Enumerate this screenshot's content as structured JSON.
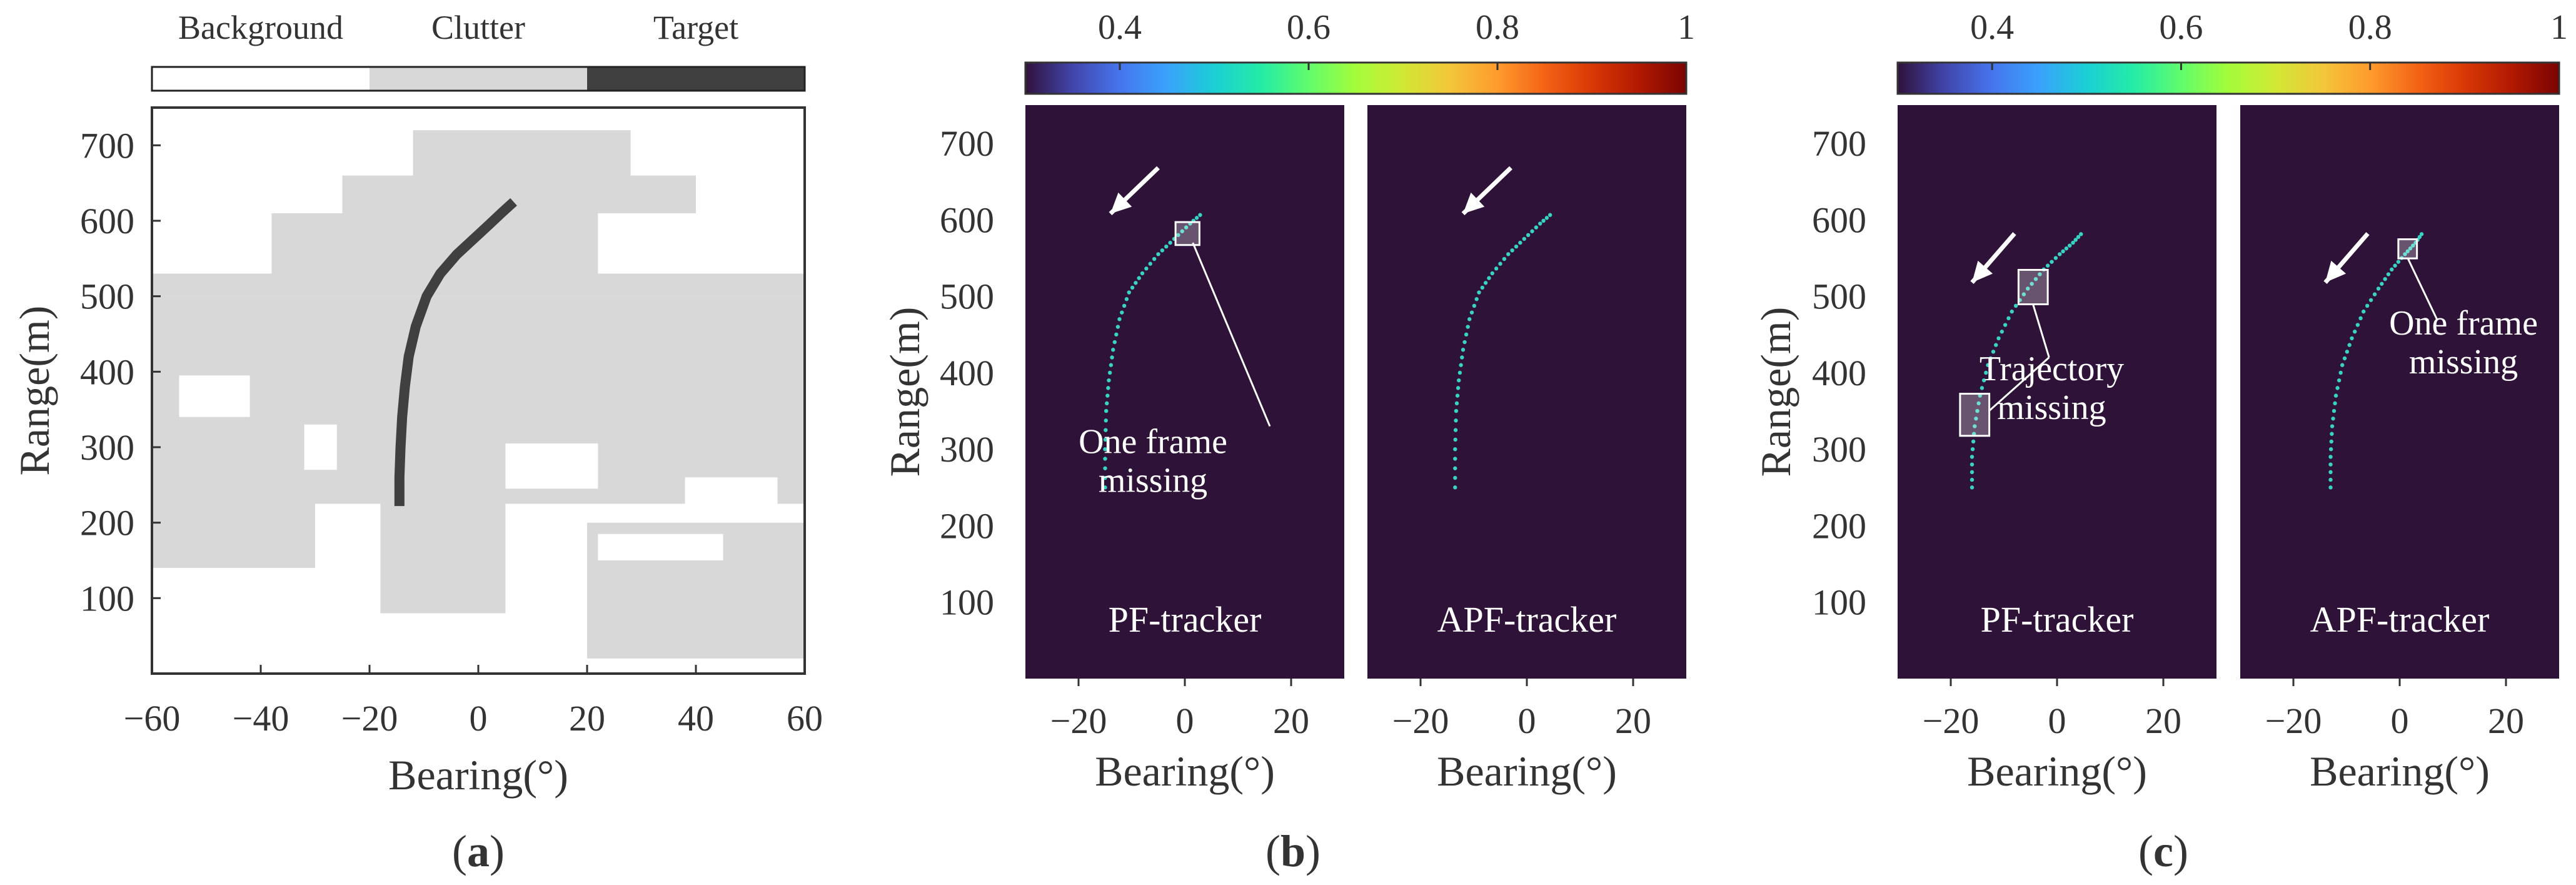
{
  "chart_data": [
    {
      "type": "heatmap",
      "panel_label": "a",
      "xlabel": "Bearing(°)",
      "ylabel": "Range(m)",
      "xlim": [
        -60,
        60
      ],
      "ylim": [
        0,
        750
      ],
      "x_ticks": [
        -60,
        -40,
        -20,
        0,
        20,
        40,
        60
      ],
      "x_tick_labels": [
        "−60",
        "−40",
        "−20",
        "0",
        "20",
        "40",
        "60"
      ],
      "y_ticks": [
        100,
        200,
        300,
        400,
        500,
        600,
        700
      ],
      "legend": [
        {
          "label": "Background",
          "color": "#ffffff"
        },
        {
          "label": "Clutter",
          "color": "#d8d8d8"
        },
        {
          "label": "Target",
          "color": "#404040"
        }
      ],
      "clutter_regions": [
        {
          "x": [
            -60,
            60
          ],
          "y": [
            225,
            500
          ]
        },
        {
          "x": [
            -60,
            60
          ],
          "y": [
            500,
            530
          ]
        },
        {
          "x": [
            -38,
            22
          ],
          "y": [
            530,
            610
          ]
        },
        {
          "x": [
            -25,
            40
          ],
          "y": [
            610,
            660
          ]
        },
        {
          "x": [
            -12,
            28
          ],
          "y": [
            660,
            720
          ]
        },
        {
          "x": [
            -60,
            -30
          ],
          "y": [
            140,
            225
          ]
        },
        {
          "x": [
            -18,
            5
          ],
          "y": [
            80,
            225
          ]
        },
        {
          "x": [
            20,
            60
          ],
          "y": [
            20,
            200
          ]
        }
      ],
      "background_holes": [
        {
          "x": [
            -55,
            -42
          ],
          "y": [
            340,
            395
          ]
        },
        {
          "x": [
            -32,
            -26
          ],
          "y": [
            270,
            330
          ]
        },
        {
          "x": [
            5,
            22
          ],
          "y": [
            245,
            305
          ]
        },
        {
          "x": [
            38,
            55
          ],
          "y": [
            220,
            260
          ]
        },
        {
          "x": [
            -52,
            -38
          ],
          "y": [
            80,
            120
          ]
        },
        {
          "x": [
            22,
            45
          ],
          "y": [
            150,
            185
          ]
        }
      ],
      "target_track": {
        "x": [
          -14.5,
          -14.5,
          -14.3,
          -14.0,
          -13.5,
          -12.8,
          -11.5,
          -9.5,
          -7.0,
          -4.0,
          -1.0,
          2.0,
          4.5,
          6.5
        ],
        "y": [
          222,
          260,
          300,
          340,
          380,
          420,
          460,
          500,
          530,
          555,
          575,
          595,
          612,
          625
        ]
      }
    },
    {
      "type": "heatmap",
      "panel_label": "b",
      "colorbar": {
        "range": [
          0.3,
          1
        ],
        "ticks": [
          0.4,
          0.6,
          0.8,
          1
        ],
        "tick_labels": [
          "0.4",
          "0.6",
          "0.8",
          "1"
        ],
        "colors": [
          "#30123b",
          "#4145ab",
          "#4675ed",
          "#39a2fc",
          "#1bcfd4",
          "#24eca6",
          "#61fc6c",
          "#a4fc3b",
          "#d1e834",
          "#f3c63a",
          "#fe9b2d",
          "#f36315",
          "#d93806",
          "#b11901",
          "#7a0402"
        ]
      },
      "ylabel": "Range(m)",
      "ylim": [
        0,
        750
      ],
      "y_ticks": [
        100,
        200,
        300,
        400,
        500,
        600,
        700
      ],
      "background_color": "#2f1238",
      "subplots": [
        {
          "title": "PF-tracker",
          "xlabel": "Bearing(°)",
          "xlim": [
            -30,
            30
          ],
          "x_ticks": [
            -20,
            0,
            20
          ],
          "x_tick_labels": [
            "−20",
            "0",
            "20"
          ],
          "track": {
            "x": [
              -15,
              -15,
              -14.8,
              -14.3,
              -13.5,
              -12.3,
              -10.5,
              -8,
              -5,
              -2,
              1,
              3.5
            ],
            "y": [
              250,
              300,
              350,
              390,
              430,
              470,
              505,
              530,
              555,
              575,
              595,
              610
            ]
          },
          "arrow": {
            "from": [
              -5,
              668
            ],
            "to": [
              -14,
              608
            ]
          },
          "missing_boxes": [
            {
              "x": 0.5,
              "y": 582,
              "w": 4.5,
              "h": 30
            }
          ],
          "annotation": {
            "text": [
              "One frame",
              "missing"
            ],
            "pointer_from": [
              1.5,
              570
            ],
            "pointer_to": [
              16,
              330
            ],
            "text_at": [
              -6,
              295
            ]
          }
        },
        {
          "title": "APF-tracker",
          "xlabel": "Bearing(°)",
          "xlim": [
            -30,
            30
          ],
          "x_ticks": [
            -20,
            0,
            20
          ],
          "x_tick_labels": [
            "−20",
            "0",
            "20"
          ],
          "track": {
            "x": [
              -13.5,
              -13.5,
              -13.3,
              -12.8,
              -12,
              -10.8,
              -9,
              -6.5,
              -3.5,
              -0.5,
              2.5,
              5
            ],
            "y": [
              250,
              300,
              350,
              390,
              430,
              470,
              505,
              530,
              555,
              575,
              595,
              610
            ]
          },
          "arrow": {
            "from": [
              -3,
              668
            ],
            "to": [
              -12,
              608
            ]
          }
        }
      ]
    },
    {
      "type": "heatmap",
      "panel_label": "c",
      "colorbar": {
        "range": [
          0.3,
          1
        ],
        "ticks": [
          0.4,
          0.6,
          0.8,
          1
        ],
        "tick_labels": [
          "0.4",
          "0.6",
          "0.8",
          "1"
        ],
        "colors": [
          "#30123b",
          "#4145ab",
          "#4675ed",
          "#39a2fc",
          "#1bcfd4",
          "#24eca6",
          "#61fc6c",
          "#a4fc3b",
          "#d1e834",
          "#f3c63a",
          "#fe9b2d",
          "#f36315",
          "#d93806",
          "#b11901",
          "#7a0402"
        ]
      },
      "ylabel": "Range(m)",
      "ylim": [
        0,
        750
      ],
      "y_ticks": [
        100,
        200,
        300,
        400,
        500,
        600,
        700
      ],
      "background_color": "#2f1238",
      "subplots": [
        {
          "title": "PF-tracker",
          "xlabel": "Bearing(°)",
          "xlim": [
            -30,
            30
          ],
          "x_ticks": [
            -20,
            0,
            20
          ],
          "x_tick_labels": [
            "−20",
            "0",
            "20"
          ],
          "track": {
            "x": [
              -16,
              -16,
              -15.5,
              -14.5,
              -13,
              -11,
              -8.5,
              -5.5,
              -2.5,
              0.5,
              3,
              5
            ],
            "y": [
              250,
              290,
              330,
              370,
              410,
              445,
              480,
              510,
              535,
              555,
              570,
              585
            ]
          },
          "arrow": {
            "from": [
              -8,
              582
            ],
            "to": [
              -16,
              518
            ]
          },
          "missing_boxes": [
            {
              "x": -4.5,
              "y": 512,
              "w": 5.5,
              "h": 45
            },
            {
              "x": -15.5,
              "y": 345,
              "w": 5.5,
              "h": 55
            }
          ],
          "annotation": {
            "text": [
              "Trajectory",
              "missing"
            ],
            "pointer_from": [
              [
                -4.5,
                489
              ],
              [
                -12.8,
                350
              ]
            ],
            "pointer_to": [
              -1.5,
              420
            ],
            "text_at": [
              -1,
              390
            ]
          }
        },
        {
          "title": "APF-tracker",
          "xlabel": "Bearing(°)",
          "xlim": [
            -30,
            30
          ],
          "x_ticks": [
            -20,
            0,
            20
          ],
          "x_tick_labels": [
            "−20",
            "0",
            "20"
          ],
          "track": {
            "x": [
              -13,
              -13,
              -12.7,
              -12,
              -10.8,
              -9,
              -6.8,
              -4,
              -1.5,
              1,
              3,
              4.5
            ],
            "y": [
              250,
              290,
              330,
              370,
              410,
              445,
              480,
              510,
              535,
              555,
              570,
              585
            ]
          },
          "arrow": {
            "from": [
              -6,
              582
            ],
            "to": [
              -14,
              518
            ]
          },
          "missing_boxes": [
            {
              "x": 1.5,
              "y": 562,
              "w": 3.5,
              "h": 25
            }
          ],
          "annotation": {
            "text": [
              "One frame",
              "missing"
            ],
            "pointer_from": [
              1.5,
              550
            ],
            "pointer_to": [
              7,
              470
            ],
            "text_at": [
              12,
              450
            ]
          }
        }
      ]
    }
  ]
}
